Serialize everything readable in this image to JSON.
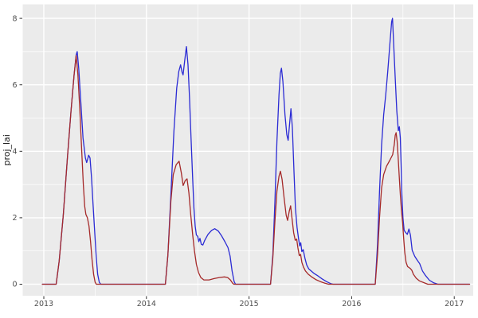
{
  "figure": {
    "kind": "ggplot2-style line chart",
    "background": "#ffffff",
    "panel_background": "#ebebeb",
    "grid_major_color": "#ffffff",
    "grid_minor_color": "#ffffff",
    "axis_text_color": "#4d4d4d",
    "tick_mark_color": "#333333"
  },
  "chart_data": {
    "type": "line",
    "title": "",
    "xlabel": "",
    "ylabel": "proj_lai",
    "x_ticks": [
      2013,
      2014,
      2015,
      2016,
      2017
    ],
    "x_tick_labels": [
      "2013",
      "2014",
      "2015",
      "2016",
      "2017"
    ],
    "y_ticks": [
      0,
      2,
      4,
      6,
      8
    ],
    "y_tick_labels": [
      "0",
      "2",
      "4",
      "6",
      "8"
    ],
    "x_minor_ticks": [
      2013.5,
      2014.5,
      2015.5,
      2016.5
    ],
    "y_minor_ticks": [
      1,
      3,
      5,
      7
    ],
    "xlim": [
      2012.79,
      2017.19
    ],
    "ylim": [
      -0.35,
      8.43
    ],
    "grid": "white major and minor gridlines on grey panel",
    "legend": "none",
    "series": [
      {
        "name": "series-blue",
        "color": "#2b2bd4",
        "points": [
          [
            2012.985,
            0
          ],
          [
            2013.12,
            0
          ],
          [
            2013.15,
            0.7
          ],
          [
            2013.19,
            2.1
          ],
          [
            2013.23,
            3.8
          ],
          [
            2013.265,
            5.2
          ],
          [
            2013.295,
            6.3
          ],
          [
            2013.315,
            6.9
          ],
          [
            2013.325,
            7.0
          ],
          [
            2013.34,
            6.5
          ],
          [
            2013.36,
            5.5
          ],
          [
            2013.382,
            4.4
          ],
          [
            2013.405,
            3.8
          ],
          [
            2013.418,
            3.66
          ],
          [
            2013.437,
            3.88
          ],
          [
            2013.45,
            3.8
          ],
          [
            2013.465,
            3.2
          ],
          [
            2013.48,
            2.4
          ],
          [
            2013.495,
            1.6
          ],
          [
            2013.51,
            0.85
          ],
          [
            2013.525,
            0.3
          ],
          [
            2013.54,
            0.06
          ],
          [
            2013.555,
            0
          ],
          [
            2014.185,
            0
          ],
          [
            2014.21,
            0.9
          ],
          [
            2014.24,
            2.8
          ],
          [
            2014.268,
            4.6
          ],
          [
            2014.295,
            5.9
          ],
          [
            2014.315,
            6.4
          ],
          [
            2014.333,
            6.6
          ],
          [
            2014.347,
            6.38
          ],
          [
            2014.357,
            6.3
          ],
          [
            2014.372,
            6.7
          ],
          [
            2014.39,
            7.15
          ],
          [
            2014.405,
            6.6
          ],
          [
            2014.42,
            5.6
          ],
          [
            2014.435,
            4.4
          ],
          [
            2014.45,
            3.2
          ],
          [
            2014.463,
            2.3
          ],
          [
            2014.475,
            1.75
          ],
          [
            2014.487,
            1.48
          ],
          [
            2014.5,
            1.44
          ],
          [
            2014.51,
            1.28
          ],
          [
            2014.522,
            1.38
          ],
          [
            2014.535,
            1.2
          ],
          [
            2014.55,
            1.18
          ],
          [
            2014.568,
            1.32
          ],
          [
            2014.6,
            1.5
          ],
          [
            2014.635,
            1.62
          ],
          [
            2014.665,
            1.67
          ],
          [
            2014.7,
            1.6
          ],
          [
            2014.73,
            1.47
          ],
          [
            2014.765,
            1.28
          ],
          [
            2014.795,
            1.1
          ],
          [
            2014.815,
            0.85
          ],
          [
            2014.835,
            0.4
          ],
          [
            2014.855,
            0.08
          ],
          [
            2014.868,
            0
          ],
          [
            2015.21,
            0
          ],
          [
            2015.232,
            0.9
          ],
          [
            2015.252,
            2.5
          ],
          [
            2015.272,
            4.3
          ],
          [
            2015.292,
            5.7
          ],
          [
            2015.305,
            6.35
          ],
          [
            2015.316,
            6.5
          ],
          [
            2015.33,
            6.1
          ],
          [
            2015.35,
            5.1
          ],
          [
            2015.368,
            4.5
          ],
          [
            2015.381,
            4.33
          ],
          [
            2015.396,
            4.85
          ],
          [
            2015.408,
            5.28
          ],
          [
            2015.422,
            4.7
          ],
          [
            2015.438,
            3.4
          ],
          [
            2015.452,
            2.3
          ],
          [
            2015.468,
            1.7
          ],
          [
            2015.482,
            1.38
          ],
          [
            2015.494,
            1.15
          ],
          [
            2015.504,
            1.25
          ],
          [
            2015.515,
            0.98
          ],
          [
            2015.528,
            1.04
          ],
          [
            2015.545,
            0.78
          ],
          [
            2015.562,
            0.58
          ],
          [
            2015.582,
            0.46
          ],
          [
            2015.605,
            0.4
          ],
          [
            2015.635,
            0.32
          ],
          [
            2015.672,
            0.25
          ],
          [
            2015.712,
            0.16
          ],
          [
            2015.755,
            0.08
          ],
          [
            2015.795,
            0.02
          ],
          [
            2015.818,
            0
          ],
          [
            2016.23,
            0
          ],
          [
            2016.252,
            1.2
          ],
          [
            2016.272,
            2.8
          ],
          [
            2016.292,
            4.2
          ],
          [
            2016.312,
            5.1
          ],
          [
            2016.332,
            5.7
          ],
          [
            2016.352,
            6.4
          ],
          [
            2016.372,
            7.2
          ],
          [
            2016.39,
            7.9
          ],
          [
            2016.398,
            8.0
          ],
          [
            2016.41,
            7.2
          ],
          [
            2016.425,
            6.2
          ],
          [
            2016.44,
            5.2
          ],
          [
            2016.448,
            4.9
          ],
          [
            2016.455,
            4.62
          ],
          [
            2016.465,
            4.74
          ],
          [
            2016.474,
            4.4
          ],
          [
            2016.482,
            3.6
          ],
          [
            2016.49,
            2.7
          ],
          [
            2016.5,
            2.0
          ],
          [
            2016.512,
            1.62
          ],
          [
            2016.528,
            1.55
          ],
          [
            2016.543,
            1.5
          ],
          [
            2016.558,
            1.66
          ],
          [
            2016.573,
            1.48
          ],
          [
            2016.59,
            1.02
          ],
          [
            2016.615,
            0.84
          ],
          [
            2016.64,
            0.72
          ],
          [
            2016.663,
            0.62
          ],
          [
            2016.69,
            0.4
          ],
          [
            2016.72,
            0.26
          ],
          [
            2016.758,
            0.12
          ],
          [
            2016.8,
            0.04
          ],
          [
            2016.84,
            0
          ],
          [
            2017.15,
            0
          ]
        ]
      },
      {
        "name": "series-red",
        "color": "#a52a2a",
        "points": [
          [
            2012.985,
            0
          ],
          [
            2013.12,
            0
          ],
          [
            2013.15,
            0.7
          ],
          [
            2013.19,
            2.1
          ],
          [
            2013.23,
            3.8
          ],
          [
            2013.265,
            5.2
          ],
          [
            2013.295,
            6.3
          ],
          [
            2013.315,
            6.88
          ],
          [
            2013.332,
            6.3
          ],
          [
            2013.35,
            5.3
          ],
          [
            2013.368,
            4.1
          ],
          [
            2013.385,
            3.0
          ],
          [
            2013.398,
            2.35
          ],
          [
            2013.41,
            2.1
          ],
          [
            2013.425,
            2.0
          ],
          [
            2013.44,
            1.75
          ],
          [
            2013.455,
            1.3
          ],
          [
            2013.47,
            0.75
          ],
          [
            2013.485,
            0.3
          ],
          [
            2013.5,
            0.06
          ],
          [
            2013.512,
            0
          ],
          [
            2014.185,
            0
          ],
          [
            2014.21,
            0.9
          ],
          [
            2014.238,
            2.5
          ],
          [
            2014.262,
            3.3
          ],
          [
            2014.29,
            3.6
          ],
          [
            2014.318,
            3.7
          ],
          [
            2014.34,
            3.35
          ],
          [
            2014.358,
            2.97
          ],
          [
            2014.378,
            3.12
          ],
          [
            2014.396,
            3.17
          ],
          [
            2014.414,
            2.75
          ],
          [
            2014.432,
            2.1
          ],
          [
            2014.45,
            1.5
          ],
          [
            2014.468,
            1.0
          ],
          [
            2014.487,
            0.6
          ],
          [
            2014.508,
            0.35
          ],
          [
            2014.53,
            0.2
          ],
          [
            2014.56,
            0.13
          ],
          [
            2014.61,
            0.13
          ],
          [
            2014.66,
            0.17
          ],
          [
            2014.71,
            0.2
          ],
          [
            2014.76,
            0.22
          ],
          [
            2014.792,
            0.2
          ],
          [
            2014.818,
            0.13
          ],
          [
            2014.84,
            0.03
          ],
          [
            2014.852,
            0
          ],
          [
            2015.21,
            0
          ],
          [
            2015.232,
            0.8
          ],
          [
            2015.252,
            1.9
          ],
          [
            2015.272,
            2.8
          ],
          [
            2015.292,
            3.25
          ],
          [
            2015.306,
            3.4
          ],
          [
            2015.322,
            3.15
          ],
          [
            2015.342,
            2.6
          ],
          [
            2015.362,
            2.08
          ],
          [
            2015.376,
            1.92
          ],
          [
            2015.392,
            2.2
          ],
          [
            2015.405,
            2.36
          ],
          [
            2015.42,
            1.95
          ],
          [
            2015.435,
            1.55
          ],
          [
            2015.45,
            1.32
          ],
          [
            2015.464,
            1.36
          ],
          [
            2015.476,
            1.1
          ],
          [
            2015.49,
            0.86
          ],
          [
            2015.502,
            0.9
          ],
          [
            2015.515,
            0.66
          ],
          [
            2015.53,
            0.52
          ],
          [
            2015.55,
            0.4
          ],
          [
            2015.578,
            0.3
          ],
          [
            2015.61,
            0.22
          ],
          [
            2015.65,
            0.14
          ],
          [
            2015.695,
            0.08
          ],
          [
            2015.74,
            0.03
          ],
          [
            2015.775,
            0
          ],
          [
            2016.23,
            0
          ],
          [
            2016.252,
            0.9
          ],
          [
            2016.272,
            2.0
          ],
          [
            2016.292,
            2.9
          ],
          [
            2016.312,
            3.3
          ],
          [
            2016.34,
            3.55
          ],
          [
            2016.37,
            3.72
          ],
          [
            2016.4,
            3.9
          ],
          [
            2016.415,
            4.2
          ],
          [
            2016.425,
            4.48
          ],
          [
            2016.433,
            4.56
          ],
          [
            2016.443,
            4.3
          ],
          [
            2016.453,
            3.85
          ],
          [
            2016.463,
            3.3
          ],
          [
            2016.474,
            2.7
          ],
          [
            2016.486,
            2.2
          ],
          [
            2016.497,
            1.85
          ],
          [
            2016.508,
            1.35
          ],
          [
            2016.518,
            0.95
          ],
          [
            2016.53,
            0.66
          ],
          [
            2016.545,
            0.53
          ],
          [
            2016.56,
            0.5
          ],
          [
            2016.573,
            0.47
          ],
          [
            2016.586,
            0.42
          ],
          [
            2016.602,
            0.3
          ],
          [
            2016.63,
            0.18
          ],
          [
            2016.66,
            0.1
          ],
          [
            2016.7,
            0.05
          ],
          [
            2016.742,
            0
          ],
          [
            2017.15,
            0
          ]
        ]
      }
    ]
  }
}
